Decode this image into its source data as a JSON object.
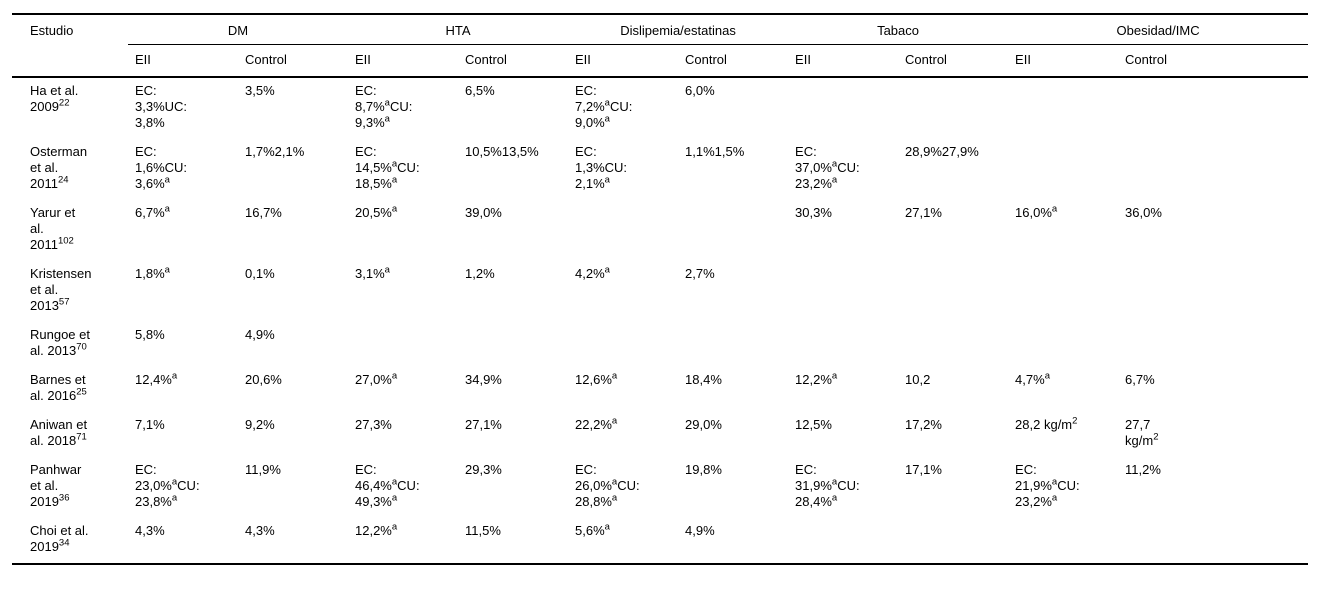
{
  "table": {
    "estudio_header": "Estudio",
    "groups": [
      {
        "key": "dm",
        "label": "DM"
      },
      {
        "key": "hta",
        "label": "HTA"
      },
      {
        "key": "dislipemia",
        "label": "Dislipemia/estatinas"
      },
      {
        "key": "tabaco",
        "label": "Tabaco"
      },
      {
        "key": "obesidad",
        "label": "Obesidad/IMC"
      }
    ],
    "subheaders": [
      {
        "key": "eii",
        "label": "EII"
      },
      {
        "key": "control",
        "label": "Control"
      }
    ],
    "rows": [
      {
        "study": "Ha et al.\n2009^22^",
        "cells": [
          "EC:\n3,3%UC:\n3,8%",
          "3,5%",
          "EC:\n8,7%^a^CU:\n9,3%^a^",
          "6,5%",
          "EC:\n7,2%^a^CU:\n9,0%^a^",
          "6,0%",
          "",
          "",
          "",
          ""
        ]
      },
      {
        "study": "Osterman\net al.\n2011^24^",
        "cells": [
          "EC:\n1,6%CU:\n3,6%^a^",
          "1,7%2,1%",
          "EC:\n14,5%^a^CU:\n18,5%^a^",
          "10,5%13,5%",
          "EC:\n1,3%CU:\n2,1%^a^",
          "1,1%1,5%",
          "EC:\n37,0%^a^CU:\n23,2%^a^",
          "28,9%27,9%",
          "",
          ""
        ]
      },
      {
        "study": "Yarur et\nal.\n2011^102^",
        "cells": [
          "6,7%^a^",
          "16,7%",
          "20,5%^a^",
          "39,0%",
          "",
          "",
          "30,3%",
          "27,1%",
          "16,0%^a^",
          "36,0%"
        ]
      },
      {
        "study": "Kristensen\net al.\n2013^57^",
        "cells": [
          "1,8%^a^",
          "0,1%",
          "3,1%^a^",
          "1,2%",
          "4,2%^a^",
          "2,7%",
          "",
          "",
          "",
          ""
        ]
      },
      {
        "study": "Rungoe et\nal. 2013^70^",
        "cells": [
          "5,8%",
          "4,9%",
          "",
          "",
          "",
          "",
          "",
          "",
          "",
          ""
        ]
      },
      {
        "study": "Barnes et\nal. 2016^25^",
        "cells": [
          "12,4%^a^",
          "20,6%",
          "27,0%^a^",
          "34,9%",
          "12,6%^a^",
          "18,4%",
          "12,2%^a^",
          "10,2",
          "4,7%^a^",
          "6,7%"
        ]
      },
      {
        "study": "Aniwan et\nal. 2018^71^",
        "cells": [
          "7,1%",
          "9,2%",
          "27,3%",
          "27,1%",
          "22,2%^a^",
          "29,0%",
          "12,5%",
          "17,2%",
          "28,2 kg/m^2^",
          "27,7\nkg/m^2^"
        ]
      },
      {
        "study": "Panhwar\net al.\n2019^36^",
        "cells": [
          "EC:\n23,0%^a^CU:\n23,8%^a^",
          "11,9%",
          "EC:\n46,4%^a^CU:\n49,3%^a^",
          "29,3%",
          "EC:\n26,0%^a^CU:\n28,8%^a^",
          "19,8%",
          "EC:\n31,9%^a^CU:\n28,4%^a^",
          "17,1%",
          "EC:\n21,9%^a^CU:\n23,2%^a^",
          "11,2%"
        ]
      },
      {
        "study": "Choi et al.\n2019^34^",
        "cells": [
          "4,3%",
          "4,3%",
          "12,2%^a^",
          "11,5%",
          "5,6%^a^",
          "4,9%",
          "",
          "",
          "",
          ""
        ]
      }
    ]
  }
}
